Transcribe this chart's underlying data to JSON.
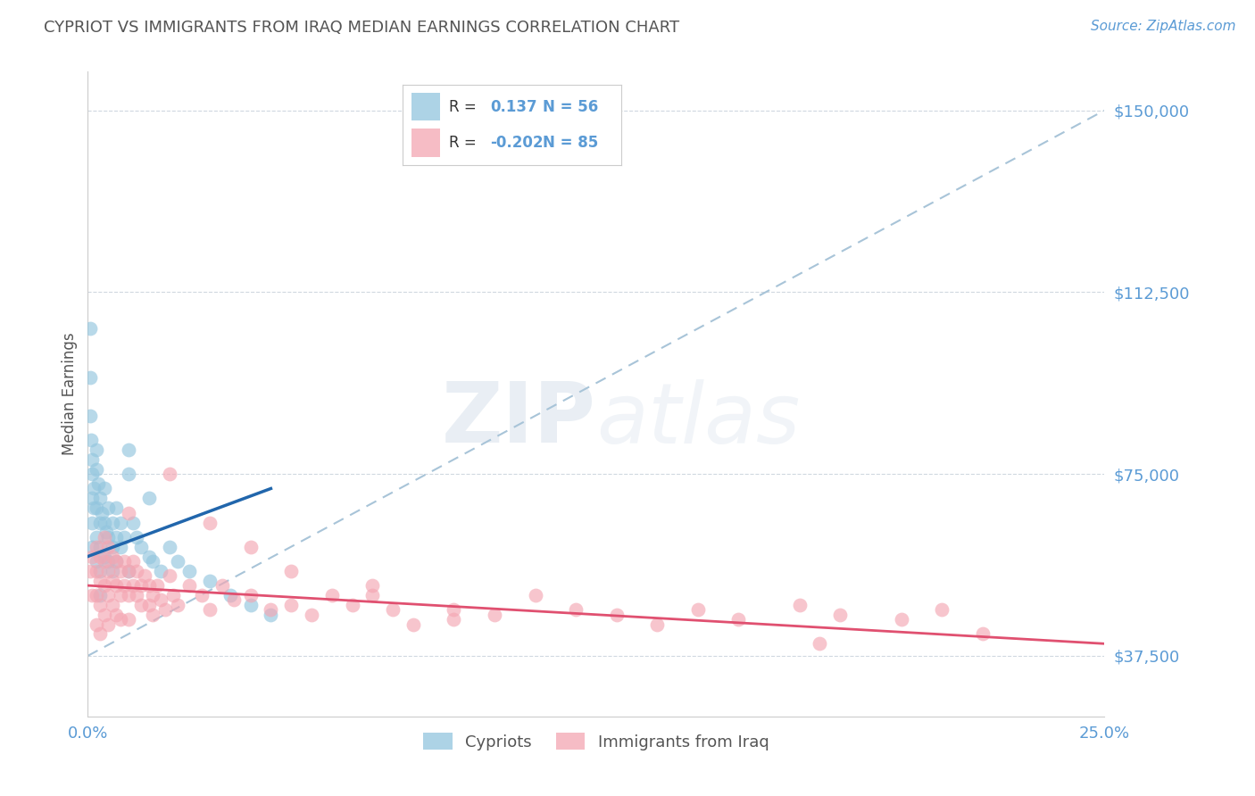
{
  "title": "CYPRIOT VS IMMIGRANTS FROM IRAQ MEDIAN EARNINGS CORRELATION CHART",
  "source": "Source: ZipAtlas.com",
  "ylabel": "Median Earnings",
  "xmin": 0.0,
  "xmax": 0.25,
  "ymin": 25000,
  "ymax": 158000,
  "yticks": [
    37500,
    75000,
    112500,
    150000
  ],
  "ytick_labels": [
    "$37,500",
    "$75,000",
    "$112,500",
    "$150,000"
  ],
  "xticks": [
    0.0,
    0.0625,
    0.125,
    0.1875,
    0.25
  ],
  "xtick_labels": [
    "0.0%",
    "",
    "",
    "",
    "25.0%"
  ],
  "title_color": "#555555",
  "source_color": "#5b9bd5",
  "ytick_color": "#5b9bd5",
  "xtick_color": "#5b9bd5",
  "blue_color": "#92c5de",
  "pink_color": "#f4a6b2",
  "blue_line_color": "#2166ac",
  "pink_line_color": "#e05070",
  "diag_line_color": "#a8c4d8",
  "watermark_zip": "ZIP",
  "watermark_atlas": "atlas",
  "blue_scatter_x": [
    0.0005,
    0.0005,
    0.0005,
    0.0008,
    0.001,
    0.001,
    0.001,
    0.001,
    0.001,
    0.0015,
    0.0015,
    0.002,
    0.002,
    0.002,
    0.002,
    0.002,
    0.0025,
    0.003,
    0.003,
    0.003,
    0.003,
    0.003,
    0.0035,
    0.004,
    0.004,
    0.004,
    0.0045,
    0.005,
    0.005,
    0.005,
    0.006,
    0.006,
    0.006,
    0.007,
    0.007,
    0.007,
    0.008,
    0.008,
    0.009,
    0.01,
    0.01,
    0.011,
    0.012,
    0.013,
    0.015,
    0.016,
    0.018,
    0.02,
    0.022,
    0.025,
    0.03,
    0.035,
    0.04,
    0.045,
    0.01,
    0.015
  ],
  "blue_scatter_y": [
    105000,
    95000,
    87000,
    82000,
    78000,
    75000,
    70000,
    65000,
    60000,
    72000,
    68000,
    80000,
    76000,
    68000,
    62000,
    57000,
    73000,
    70000,
    65000,
    60000,
    55000,
    50000,
    67000,
    72000,
    65000,
    58000,
    63000,
    68000,
    62000,
    57000,
    65000,
    60000,
    55000,
    68000,
    62000,
    57000,
    65000,
    60000,
    62000,
    75000,
    55000,
    65000,
    62000,
    60000,
    58000,
    57000,
    55000,
    60000,
    57000,
    55000,
    53000,
    50000,
    48000,
    46000,
    80000,
    70000
  ],
  "pink_scatter_x": [
    0.0005,
    0.001,
    0.001,
    0.002,
    0.002,
    0.002,
    0.002,
    0.003,
    0.003,
    0.003,
    0.003,
    0.004,
    0.004,
    0.004,
    0.004,
    0.005,
    0.005,
    0.005,
    0.005,
    0.006,
    0.006,
    0.006,
    0.007,
    0.007,
    0.007,
    0.008,
    0.008,
    0.008,
    0.009,
    0.009,
    0.01,
    0.01,
    0.01,
    0.011,
    0.011,
    0.012,
    0.012,
    0.013,
    0.013,
    0.014,
    0.015,
    0.015,
    0.016,
    0.016,
    0.017,
    0.018,
    0.019,
    0.02,
    0.021,
    0.022,
    0.025,
    0.028,
    0.03,
    0.033,
    0.036,
    0.04,
    0.045,
    0.05,
    0.055,
    0.06,
    0.065,
    0.07,
    0.075,
    0.08,
    0.09,
    0.1,
    0.11,
    0.12,
    0.13,
    0.14,
    0.15,
    0.16,
    0.175,
    0.185,
    0.2,
    0.21,
    0.22,
    0.01,
    0.02,
    0.03,
    0.04,
    0.05,
    0.07,
    0.09,
    0.18
  ],
  "pink_scatter_y": [
    55000,
    58000,
    50000,
    60000,
    55000,
    50000,
    44000,
    58000,
    53000,
    48000,
    42000,
    62000,
    57000,
    52000,
    46000,
    60000,
    55000,
    50000,
    44000,
    58000,
    53000,
    48000,
    57000,
    52000,
    46000,
    55000,
    50000,
    45000,
    57000,
    52000,
    55000,
    50000,
    45000,
    57000,
    52000,
    55000,
    50000,
    52000,
    48000,
    54000,
    52000,
    48000,
    50000,
    46000,
    52000,
    49000,
    47000,
    54000,
    50000,
    48000,
    52000,
    50000,
    47000,
    52000,
    49000,
    50000,
    47000,
    48000,
    46000,
    50000,
    48000,
    52000,
    47000,
    44000,
    47000,
    46000,
    50000,
    47000,
    46000,
    44000,
    47000,
    45000,
    48000,
    46000,
    45000,
    47000,
    42000,
    67000,
    75000,
    65000,
    60000,
    55000,
    50000,
    45000,
    40000
  ],
  "blue_line_x0": 0.0,
  "blue_line_x1": 0.045,
  "blue_line_y0": 58000,
  "blue_line_y1": 72000,
  "pink_line_x0": 0.0,
  "pink_line_x1": 0.25,
  "pink_line_y0": 52000,
  "pink_line_y1": 40000,
  "diag_line_x0": 0.0,
  "diag_line_x1": 0.25,
  "diag_line_y0": 37500,
  "diag_line_y1": 150000
}
